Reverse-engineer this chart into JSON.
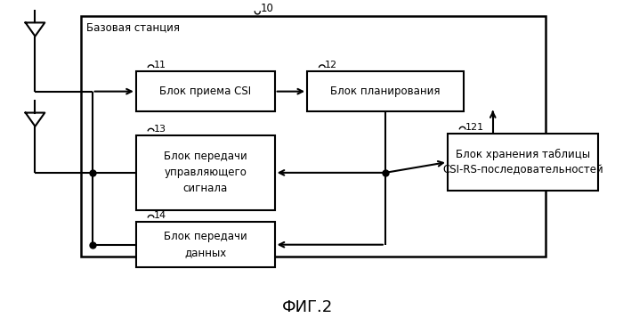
{
  "title": "ФИГ.2",
  "bg_color": "#ffffff",
  "outer_box_label": "Базовая станция",
  "num10": "10",
  "box11_label": "Блок приема CSI",
  "num11": "11",
  "box12_label": "Блок планирования",
  "num12": "12",
  "box13_label": "Блок передачи\nуправляющего\nсигнала",
  "num13": "13",
  "box14_label": "Блок передачи\nданных",
  "num14": "14",
  "box121_label": "Блок хранения таблицы\nCSI-RS-последовательностей",
  "num121": "121",
  "line_color": "#000000",
  "text_color": "#000000",
  "font_size": 8.5,
  "title_font_size": 13
}
